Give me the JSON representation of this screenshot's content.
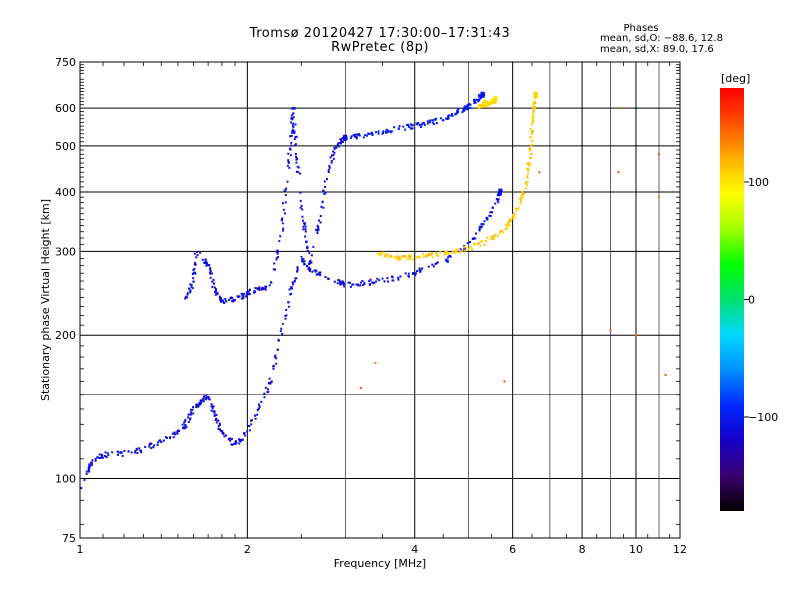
{
  "header": {
    "title_line1": "Tromsø 20120427 17:30:00–17:31:43",
    "title_line2": "RwPretec (8p)"
  },
  "phases": {
    "title": "Phases",
    "o_line": "mean, sd,O: −88.6, 12.8",
    "x_line": "mean, sd,X:  89.0, 17.6"
  },
  "colorbar": {
    "unit": "[deg]",
    "ticks": [
      {
        "value": 100,
        "label": "100"
      },
      {
        "value": 0,
        "label": "0"
      },
      {
        "value": -100,
        "label": "−100"
      }
    ],
    "range": [
      -180,
      180
    ],
    "colors": [
      "#000000",
      "#3b0070",
      "#1600c8",
      "#0028ff",
      "#0090ff",
      "#00d8ff",
      "#00e070",
      "#00ff00",
      "#a0ff00",
      "#ffff00",
      "#ffb000",
      "#ff5000",
      "#ff0000"
    ]
  },
  "chart_data": {
    "type": "scatter",
    "xlabel": "Frequency [MHz]",
    "ylabel": "Stationary phase Virtual Height [km]",
    "xscale": "log",
    "yscale": "log",
    "xlim": [
      1,
      12
    ],
    "ylim": [
      75,
      750
    ],
    "x_ticks": [
      1,
      2,
      4,
      6,
      8,
      10,
      12
    ],
    "x_tick_labels": [
      "1",
      "2",
      "4",
      "6",
      "8",
      "10",
      "12"
    ],
    "x_minor_grid": [
      3,
      5,
      7,
      9,
      11
    ],
    "y_ticks": [
      75,
      100,
      200,
      300,
      400,
      500,
      600,
      750
    ],
    "y_tick_labels": [
      "75",
      "100",
      "200",
      "300",
      "400",
      "500",
      "600",
      "750"
    ],
    "y_minor_grid": [
      150
    ],
    "grid": true,
    "legend": "colorbar-right",
    "series": [
      {
        "mode": "O",
        "color_value": -110,
        "points": [
          [
            1.0,
            95
          ],
          [
            1.05,
            108
          ],
          [
            1.1,
            112
          ],
          [
            1.2,
            113
          ],
          [
            1.3,
            115
          ],
          [
            1.4,
            120
          ],
          [
            1.5,
            125
          ],
          [
            1.55,
            130
          ],
          [
            1.6,
            140
          ],
          [
            1.65,
            145
          ],
          [
            1.7,
            150
          ],
          [
            1.75,
            135
          ],
          [
            1.8,
            125
          ],
          [
            1.9,
            118
          ],
          [
            2.0,
            125
          ],
          [
            2.1,
            140
          ],
          [
            2.2,
            160
          ],
          [
            2.3,
            200
          ],
          [
            2.4,
            250
          ],
          [
            2.5,
            290
          ],
          [
            2.6,
            275
          ],
          [
            2.8,
            262
          ],
          [
            3.0,
            255
          ],
          [
            3.3,
            258
          ],
          [
            3.6,
            262
          ],
          [
            4.0,
            270
          ],
          [
            4.5,
            285
          ],
          [
            5.0,
            310
          ],
          [
            5.3,
            340
          ],
          [
            5.6,
            380
          ],
          [
            5.7,
            400
          ]
        ]
      },
      {
        "mode": "O",
        "color_value": -110,
        "points": [
          [
            1.55,
            240
          ],
          [
            1.6,
            260
          ],
          [
            1.62,
            300
          ],
          [
            1.7,
            280
          ],
          [
            1.75,
            250
          ],
          [
            1.8,
            235
          ],
          [
            1.9,
            238
          ],
          [
            2.0,
            245
          ],
          [
            2.1,
            250
          ],
          [
            2.2,
            255
          ],
          [
            2.3,
            320
          ],
          [
            2.35,
            420
          ],
          [
            2.4,
            520
          ],
          [
            2.42,
            600
          ],
          [
            2.45,
            480
          ],
          [
            2.5,
            380
          ],
          [
            2.55,
            320
          ],
          [
            2.6,
            280
          ],
          [
            2.7,
            350
          ],
          [
            2.8,
            450
          ],
          [
            2.9,
            500
          ],
          [
            3.0,
            520
          ]
        ]
      },
      {
        "mode": "O",
        "color_value": -100,
        "points": [
          [
            3.0,
            520
          ],
          [
            3.2,
            525
          ],
          [
            3.5,
            535
          ],
          [
            3.8,
            545
          ],
          [
            4.0,
            550
          ],
          [
            4.3,
            560
          ],
          [
            4.6,
            575
          ],
          [
            4.8,
            590
          ],
          [
            5.0,
            605
          ],
          [
            5.2,
            625
          ],
          [
            5.3,
            640
          ]
        ]
      },
      {
        "mode": "X",
        "color_value": 110,
        "points": [
          [
            3.4,
            300
          ],
          [
            3.6,
            292
          ],
          [
            3.8,
            290
          ],
          [
            4.0,
            292
          ],
          [
            4.3,
            295
          ],
          [
            4.6,
            298
          ],
          [
            5.0,
            305
          ],
          [
            5.4,
            315
          ],
          [
            5.8,
            335
          ],
          [
            6.0,
            350
          ],
          [
            6.2,
            380
          ],
          [
            6.35,
            420
          ],
          [
            6.45,
            480
          ],
          [
            6.5,
            540
          ],
          [
            6.55,
            600
          ],
          [
            6.6,
            640
          ]
        ]
      },
      {
        "mode": "X",
        "color_value": 105,
        "points": [
          [
            5.2,
            600
          ],
          [
            5.3,
            610
          ],
          [
            5.4,
            615
          ],
          [
            5.5,
            620
          ],
          [
            5.6,
            625
          ]
        ]
      },
      {
        "mode": "scattered",
        "color_value": 150,
        "points": [
          [
            3.2,
            155
          ],
          [
            3.4,
            175
          ],
          [
            5.8,
            160
          ],
          [
            6.7,
            440
          ],
          [
            9.0,
            205
          ],
          [
            9.3,
            440
          ],
          [
            9.5,
            600
          ],
          [
            10.0,
            200
          ],
          [
            11.0,
            480
          ],
          [
            11.0,
            390
          ],
          [
            11.3,
            165
          ]
        ]
      }
    ]
  }
}
